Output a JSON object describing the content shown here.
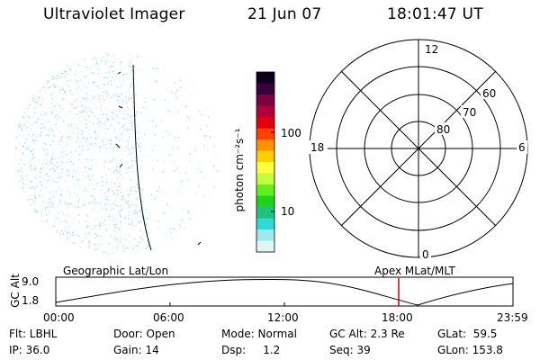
{
  "header": {
    "title": "Ultraviolet Imager",
    "date": "21 Jun 07",
    "time": "18:01:47 UT"
  },
  "colorbar": {
    "unit_label": "photon cm⁻²s⁻¹",
    "ticks": [
      "100",
      "10"
    ],
    "colors": [
      "#0b0020",
      "#3a003a",
      "#7a0040",
      "#b0003a",
      "#e00010",
      "#ff4000",
      "#ff9000",
      "#ffd000",
      "#ffff40",
      "#c0ff40",
      "#60f020",
      "#20d020",
      "#20c080",
      "#30d8d8",
      "#a0e8ec",
      "#e0f4f6"
    ]
  },
  "polar_plot": {
    "latitude_labels": [
      "80",
      "70",
      "60"
    ],
    "mlt_labels": [
      "12",
      "18",
      "6",
      "0"
    ]
  },
  "timeline": {
    "left_title": "Geographic Lat/Lon",
    "right_title": "Apex MLat/MLT",
    "y_axis_label": "GC Alt",
    "y_ticks": [
      "9.0",
      "1.8"
    ],
    "x_ticks": [
      "00:00",
      "06:00",
      "12:00",
      "18:00",
      "23:59"
    ],
    "marker_color": "#cc0000"
  },
  "info": {
    "row1": [
      "Flt: LBHL",
      "Door: Open",
      "Mode: Normal",
      "GC Alt: 2.3 Re",
      "GLat:  59.5"
    ],
    "row2": [
      "IP: 36.0",
      "Gain: 14",
      "Dsp:     1.2",
      "Seq: 39",
      "GLon: 153.8"
    ]
  }
}
